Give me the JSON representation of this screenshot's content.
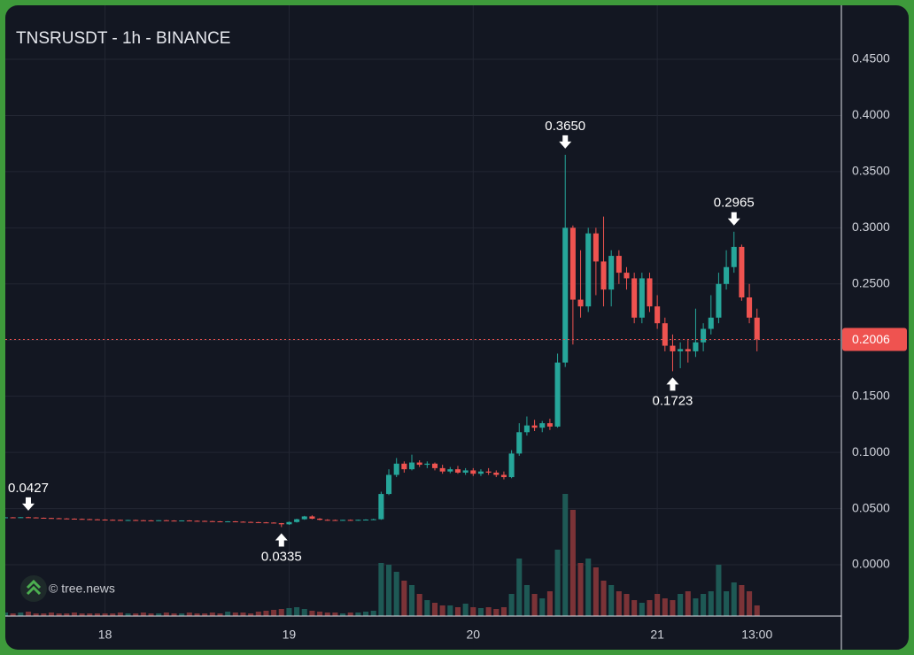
{
  "chart_data": {
    "type": "candlestick",
    "title": "TNSRUSDT - 1h - BINANCE",
    "watermark": "© tree.news",
    "x": [
      "17 11:00",
      "17 12:00",
      "17 13:00",
      "17 14:00",
      "17 15:00",
      "17 16:00",
      "17 17:00",
      "17 18:00",
      "17 19:00",
      "17 20:00",
      "17 21:00",
      "17 22:00",
      "17 23:00",
      "18 00:00",
      "18 01:00",
      "18 02:00",
      "18 03:00",
      "18 04:00",
      "18 05:00",
      "18 06:00",
      "18 07:00",
      "18 08:00",
      "18 09:00",
      "18 10:00",
      "18 11:00",
      "18 12:00",
      "18 13:00",
      "18 14:00",
      "18 15:00",
      "18 16:00",
      "18 17:00",
      "18 18:00",
      "18 19:00",
      "18 20:00",
      "18 21:00",
      "18 22:00",
      "18 23:00",
      "19 00:00",
      "19 01:00",
      "19 02:00",
      "19 03:00",
      "19 04:00",
      "19 05:00",
      "19 06:00",
      "19 07:00",
      "19 08:00",
      "19 09:00",
      "19 10:00",
      "19 11:00",
      "19 12:00",
      "19 13:00",
      "19 14:00",
      "19 15:00",
      "19 16:00",
      "19 17:00",
      "19 18:00",
      "19 19:00",
      "19 20:00",
      "19 21:00",
      "19 22:00",
      "19 23:00",
      "20 00:00",
      "20 01:00",
      "20 02:00",
      "20 03:00",
      "20 04:00",
      "20 05:00",
      "20 06:00",
      "20 07:00",
      "20 08:00",
      "20 09:00",
      "20 10:00",
      "20 11:00",
      "20 12:00",
      "20 13:00",
      "20 14:00",
      "20 15:00",
      "20 16:00",
      "20 17:00",
      "20 18:00",
      "20 19:00",
      "20 20:00",
      "20 21:00",
      "20 22:00",
      "20 23:00",
      "21 00:00",
      "21 01:00",
      "21 02:00",
      "21 03:00",
      "21 04:00",
      "21 05:00",
      "21 06:00",
      "21 07:00",
      "21 08:00",
      "21 09:00",
      "21 10:00",
      "21 11:00",
      "21 12:00",
      "21 13:00"
    ],
    "ohlc": [
      [
        0.042,
        0.0425,
        0.0418,
        0.0422
      ],
      [
        0.0422,
        0.0424,
        0.0419,
        0.042
      ],
      [
        0.042,
        0.0424,
        0.0418,
        0.0423
      ],
      [
        0.0423,
        0.0427,
        0.042,
        0.0421
      ],
      [
        0.0421,
        0.0423,
        0.0416,
        0.0418
      ],
      [
        0.0418,
        0.042,
        0.0414,
        0.0416
      ],
      [
        0.0416,
        0.0418,
        0.0412,
        0.0414
      ],
      [
        0.0414,
        0.0417,
        0.0411,
        0.0412
      ],
      [
        0.0412,
        0.0415,
        0.0408,
        0.041
      ],
      [
        0.041,
        0.0413,
        0.0406,
        0.0408
      ],
      [
        0.0408,
        0.0411,
        0.0404,
        0.0406
      ],
      [
        0.0406,
        0.0409,
        0.0402,
        0.0404
      ],
      [
        0.0404,
        0.0407,
        0.04,
        0.0402
      ],
      [
        0.0402,
        0.0405,
        0.0398,
        0.04
      ],
      [
        0.04,
        0.0403,
        0.0396,
        0.0399
      ],
      [
        0.0399,
        0.0402,
        0.0395,
        0.0397
      ],
      [
        0.0397,
        0.04,
        0.0394,
        0.0398
      ],
      [
        0.0398,
        0.0401,
        0.0394,
        0.0396
      ],
      [
        0.0396,
        0.0399,
        0.0392,
        0.0395
      ],
      [
        0.0395,
        0.0398,
        0.0391,
        0.0394
      ],
      [
        0.0394,
        0.0397,
        0.039,
        0.0396
      ],
      [
        0.0396,
        0.0399,
        0.0392,
        0.0393
      ],
      [
        0.0393,
        0.0396,
        0.0389,
        0.0392
      ],
      [
        0.0392,
        0.0395,
        0.0388,
        0.0394
      ],
      [
        0.0394,
        0.0397,
        0.039,
        0.0391
      ],
      [
        0.0391,
        0.0394,
        0.0387,
        0.039
      ],
      [
        0.039,
        0.0393,
        0.0385,
        0.0388
      ],
      [
        0.0388,
        0.0391,
        0.0383,
        0.0386
      ],
      [
        0.0386,
        0.0389,
        0.0381,
        0.0384
      ],
      [
        0.0384,
        0.0388,
        0.038,
        0.0386
      ],
      [
        0.0386,
        0.0389,
        0.0381,
        0.0383
      ],
      [
        0.0383,
        0.0386,
        0.0378,
        0.0381
      ],
      [
        0.0381,
        0.0384,
        0.0376,
        0.0379
      ],
      [
        0.0379,
        0.0382,
        0.0374,
        0.0377
      ],
      [
        0.0377,
        0.038,
        0.0372,
        0.0375
      ],
      [
        0.0375,
        0.0378,
        0.0368,
        0.037
      ],
      [
        0.037,
        0.0372,
        0.0335,
        0.036
      ],
      [
        0.036,
        0.0385,
        0.0355,
        0.038
      ],
      [
        0.038,
        0.041,
        0.0375,
        0.0405
      ],
      [
        0.0405,
        0.0435,
        0.04,
        0.043
      ],
      [
        0.043,
        0.044,
        0.0405,
        0.041
      ],
      [
        0.041,
        0.0415,
        0.0395,
        0.04
      ],
      [
        0.04,
        0.0405,
        0.0392,
        0.0398
      ],
      [
        0.0398,
        0.0402,
        0.0393,
        0.0396
      ],
      [
        0.0396,
        0.0401,
        0.0392,
        0.0399
      ],
      [
        0.0399,
        0.0403,
        0.0394,
        0.0397
      ],
      [
        0.0397,
        0.0402,
        0.0393,
        0.04
      ],
      [
        0.04,
        0.0405,
        0.0396,
        0.0402
      ],
      [
        0.0402,
        0.041,
        0.0398,
        0.0405
      ],
      [
        0.0405,
        0.065,
        0.04,
        0.063
      ],
      [
        0.063,
        0.085,
        0.062,
        0.08
      ],
      [
        0.08,
        0.095,
        0.078,
        0.09
      ],
      [
        0.09,
        0.092,
        0.082,
        0.085
      ],
      [
        0.085,
        0.098,
        0.084,
        0.091
      ],
      [
        0.091,
        0.093,
        0.087,
        0.089
      ],
      [
        0.089,
        0.092,
        0.086,
        0.09
      ],
      [
        0.09,
        0.091,
        0.084,
        0.086
      ],
      [
        0.086,
        0.089,
        0.081,
        0.083
      ],
      [
        0.083,
        0.087,
        0.0815,
        0.085
      ],
      [
        0.085,
        0.088,
        0.081,
        0.082
      ],
      [
        0.082,
        0.086,
        0.08,
        0.084
      ],
      [
        0.084,
        0.086,
        0.079,
        0.081
      ],
      [
        0.081,
        0.085,
        0.079,
        0.083
      ],
      [
        0.083,
        0.086,
        0.08,
        0.082
      ],
      [
        0.082,
        0.084,
        0.078,
        0.08
      ],
      [
        0.08,
        0.083,
        0.076,
        0.078
      ],
      [
        0.078,
        0.102,
        0.077,
        0.099
      ],
      [
        0.099,
        0.126,
        0.097,
        0.118
      ],
      [
        0.118,
        0.132,
        0.115,
        0.124
      ],
      [
        0.124,
        0.129,
        0.119,
        0.122
      ],
      [
        0.122,
        0.128,
        0.118,
        0.126
      ],
      [
        0.126,
        0.13,
        0.12,
        0.123
      ],
      [
        0.123,
        0.188,
        0.122,
        0.18
      ],
      [
        0.18,
        0.365,
        0.176,
        0.3
      ],
      [
        0.3,
        0.302,
        0.196,
        0.236
      ],
      [
        0.236,
        0.28,
        0.22,
        0.23
      ],
      [
        0.23,
        0.3,
        0.225,
        0.295
      ],
      [
        0.295,
        0.3,
        0.24,
        0.27
      ],
      [
        0.27,
        0.31,
        0.23,
        0.245
      ],
      [
        0.245,
        0.28,
        0.23,
        0.275
      ],
      [
        0.275,
        0.28,
        0.25,
        0.26
      ],
      [
        0.26,
        0.265,
        0.245,
        0.255
      ],
      [
        0.255,
        0.26,
        0.215,
        0.22
      ],
      [
        0.22,
        0.26,
        0.215,
        0.255
      ],
      [
        0.255,
        0.26,
        0.225,
        0.23
      ],
      [
        0.23,
        0.24,
        0.21,
        0.215
      ],
      [
        0.215,
        0.22,
        0.19,
        0.195
      ],
      [
        0.195,
        0.205,
        0.1723,
        0.19
      ],
      [
        0.19,
        0.198,
        0.175,
        0.192
      ],
      [
        0.192,
        0.2,
        0.18,
        0.19
      ],
      [
        0.19,
        0.228,
        0.185,
        0.198
      ],
      [
        0.198,
        0.215,
        0.19,
        0.21
      ],
      [
        0.21,
        0.24,
        0.205,
        0.22
      ],
      [
        0.22,
        0.26,
        0.215,
        0.25
      ],
      [
        0.25,
        0.28,
        0.245,
        0.265
      ],
      [
        0.265,
        0.2965,
        0.26,
        0.283
      ],
      [
        0.283,
        0.285,
        0.235,
        0.238
      ],
      [
        0.238,
        0.25,
        0.215,
        0.22
      ],
      [
        0.22,
        0.228,
        0.19,
        0.2006
      ]
    ],
    "volume": [
      4,
      3,
      4,
      5,
      3,
      3,
      4,
      3,
      3,
      4,
      3,
      3,
      3,
      3,
      3,
      4,
      3,
      3,
      4,
      3,
      3,
      4,
      3,
      3,
      4,
      3,
      3,
      4,
      3,
      5,
      4,
      4,
      3,
      5,
      6,
      7,
      8,
      9,
      10,
      8,
      6,
      5,
      4,
      4,
      3,
      4,
      4,
      5,
      6,
      60,
      58,
      50,
      40,
      35,
      25,
      18,
      15,
      12,
      12,
      10,
      14,
      10,
      9,
      10,
      8,
      10,
      25,
      65,
      35,
      25,
      20,
      28,
      75,
      138,
      120,
      60,
      65,
      55,
      40,
      35,
      28,
      25,
      18,
      15,
      18,
      25,
      20,
      18,
      25,
      28,
      20,
      25,
      28,
      58,
      28,
      38,
      35,
      28,
      12
    ],
    "up_color": "#26a69a",
    "down_color": "#ef5350",
    "up_volume_color": "#1e5955",
    "down_volume_color": "#7b3337",
    "xlim": [
      "17 11:00",
      "22 00:00"
    ],
    "xticks": [
      {
        "value": "18 00:00",
        "label": "18"
      },
      {
        "value": "19 00:00",
        "label": "19"
      },
      {
        "value": "20 00:00",
        "label": "20"
      },
      {
        "value": "21 00:00",
        "label": "21"
      },
      {
        "value": "21 13:00",
        "label": "13:00"
      }
    ],
    "ylim": [
      -0.0457,
      0.4965
    ],
    "yticks": [
      {
        "value": 0,
        "label": "0.0000"
      },
      {
        "value": 0.05,
        "label": "0.0500"
      },
      {
        "value": 0.1,
        "label": "0.1000"
      },
      {
        "value": 0.15,
        "label": "0.1500"
      },
      {
        "value": 0.2,
        "label": "0.2000"
      },
      {
        "value": 0.25,
        "label": "0.2500"
      },
      {
        "value": 0.3,
        "label": "0.3000"
      },
      {
        "value": 0.35,
        "label": "0.3500"
      },
      {
        "value": 0.4,
        "label": "0.4000"
      },
      {
        "value": 0.45,
        "label": "0.4500"
      }
    ],
    "grid": true,
    "last_price": {
      "value": 0.2006,
      "label": "0.2006"
    },
    "annotations": [
      {
        "x": "17 14:00",
        "value": 0.0427,
        "label": "0.0427"
      },
      {
        "x": "18 23:00",
        "value": 0.0335,
        "label": "0.0335"
      },
      {
        "x": "20 12:00",
        "value": 0.365,
        "label": "0.3650"
      },
      {
        "x": "21 02:00",
        "value": 0.1723,
        "label": "0.1723"
      },
      {
        "x": "21 10:00",
        "value": 0.2965,
        "label": "0.2965"
      }
    ]
  }
}
